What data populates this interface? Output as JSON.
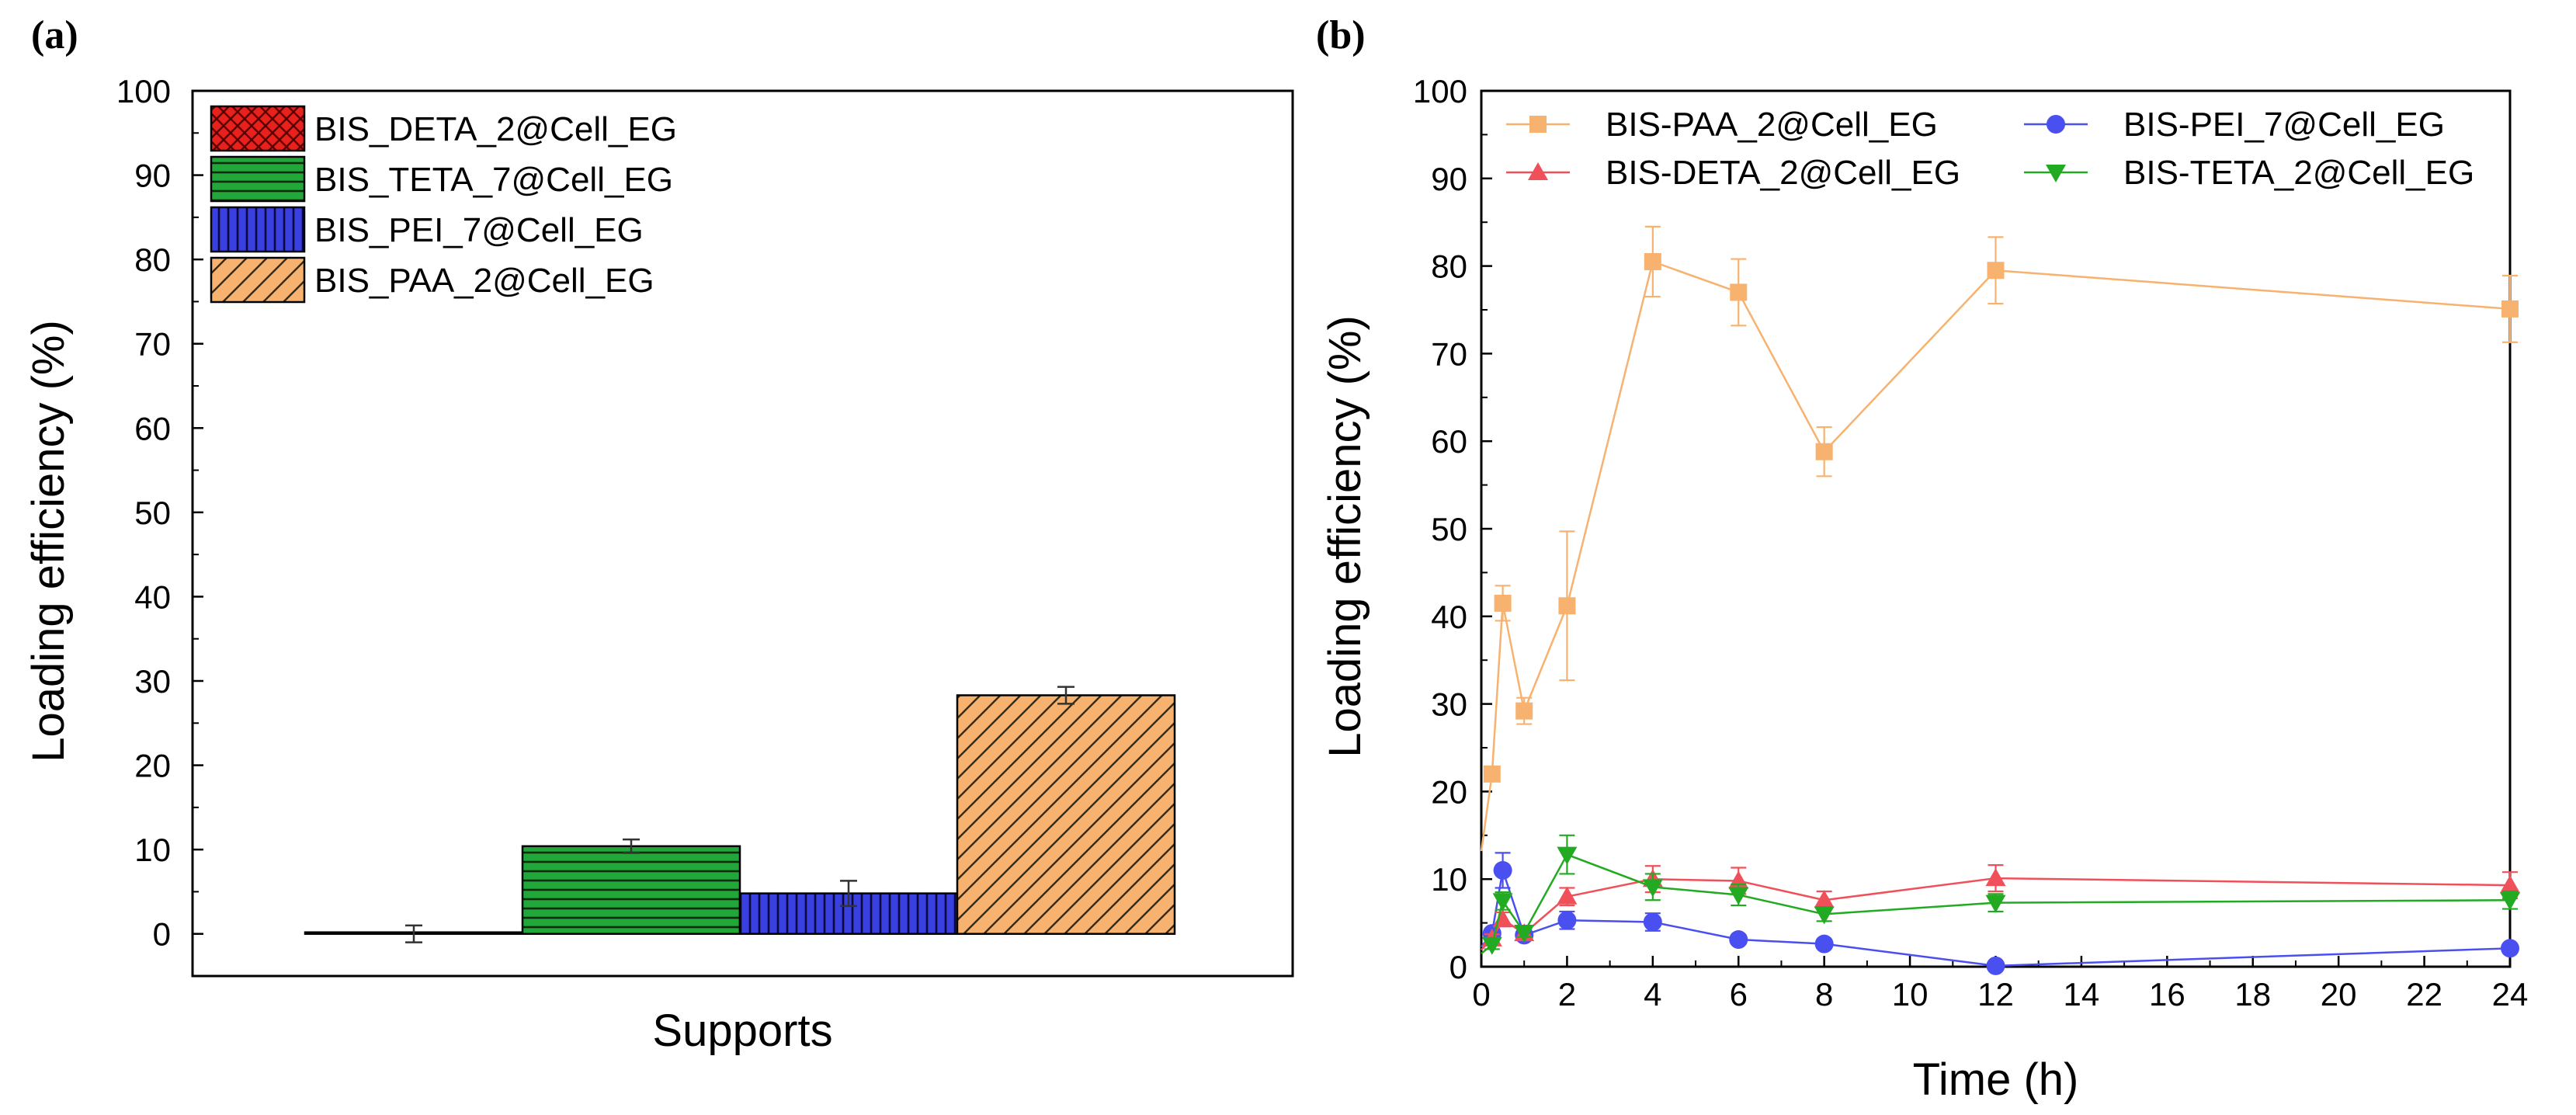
{
  "chart_data": [
    {
      "panel": "(a)",
      "type": "bar",
      "title": "",
      "xlabel": "Supports",
      "ylabel": "Loading efficiency (%)",
      "ylim": [
        -5,
        100
      ],
      "yticks": [
        0,
        10,
        20,
        30,
        40,
        50,
        60,
        70,
        80,
        90,
        100
      ],
      "grid": false,
      "legend_position": "top-left",
      "series": [
        {
          "name": "BIS_DETA_2@Cell_EG",
          "value": 0,
          "error": 1.0,
          "color": "#e8211d",
          "pattern": "crosshatch"
        },
        {
          "name": "BIS_TETA_7@Cell_EG",
          "value": 10.4,
          "error": 0.8,
          "color": "#22a83a",
          "pattern": "horizontal"
        },
        {
          "name": "BIS_PEI_7@Cell_EG",
          "value": 4.8,
          "error": 1.5,
          "color": "#3a3fe0",
          "pattern": "vertical"
        },
        {
          "name": "BIS_PAA_2@Cell_EG",
          "value": 28.3,
          "error": 1.0,
          "color": "#f7b26f",
          "pattern": "diagonal"
        }
      ]
    },
    {
      "panel": "(b)",
      "type": "line",
      "title": "",
      "xlabel": "Time (h)",
      "ylabel": "Loading efficiency (%)",
      "xlim": [
        0,
        24
      ],
      "ylim": [
        0,
        100
      ],
      "xticks": [
        0,
        2,
        4,
        6,
        8,
        10,
        12,
        14,
        16,
        18,
        20,
        22,
        24
      ],
      "yticks": [
        0,
        10,
        20,
        30,
        40,
        50,
        60,
        70,
        80,
        90,
        100
      ],
      "grid": false,
      "legend_position": "top",
      "series": [
        {
          "name": "BIS-PAA_2@Cell_EG",
          "marker": "square",
          "color": "#f7b26f",
          "x": [
            0.25,
            0.5,
            1,
            2,
            4,
            6,
            8,
            12,
            24
          ],
          "y": [
            22,
            41.5,
            29.2,
            41.2,
            80.5,
            77,
            58.8,
            79.5,
            75.1
          ],
          "err": [
            0,
            2,
            1.5,
            8.5,
            4,
            3.8,
            2.8,
            3.8,
            3.8
          ]
        },
        {
          "name": "BIS-PEI_7@Cell_EG",
          "marker": "circle",
          "color": "#4a4ff0",
          "x": [
            0.25,
            0.5,
            1,
            2,
            4,
            6,
            8,
            12,
            24
          ],
          "y": [
            3.8,
            11,
            3.6,
            5.3,
            5.1,
            3.1,
            2.6,
            0.1,
            2.1
          ],
          "err": [
            0.5,
            2,
            0.5,
            1,
            1,
            0.5,
            0.5,
            0,
            0.5
          ]
        },
        {
          "name": "BIS-DETA_2@Cell_EG",
          "marker": "triangle-up",
          "color": "#f0505a",
          "x": [
            0.25,
            0.5,
            1,
            2,
            4,
            6,
            8,
            12,
            24
          ],
          "y": [
            3.2,
            5.4,
            3.8,
            8,
            10,
            9.8,
            7.6,
            10.1,
            9.3
          ],
          "err": [
            0.5,
            0.8,
            0.5,
            1,
            1.5,
            1.5,
            1,
            1.5,
            1.5
          ]
        },
        {
          "name": "BIS-TETA_2@Cell_EG",
          "marker": "triangle-down",
          "color": "#22aa22",
          "x": [
            0.25,
            0.5,
            1,
            2,
            4,
            6,
            8,
            12,
            24
          ],
          "y": [
            2.5,
            7.5,
            3.9,
            12.8,
            9.1,
            8.2,
            6,
            7.3,
            7.6
          ],
          "err": [
            0.5,
            1,
            0.5,
            2.2,
            1.5,
            1.2,
            0.8,
            1,
            1
          ]
        }
      ]
    }
  ]
}
